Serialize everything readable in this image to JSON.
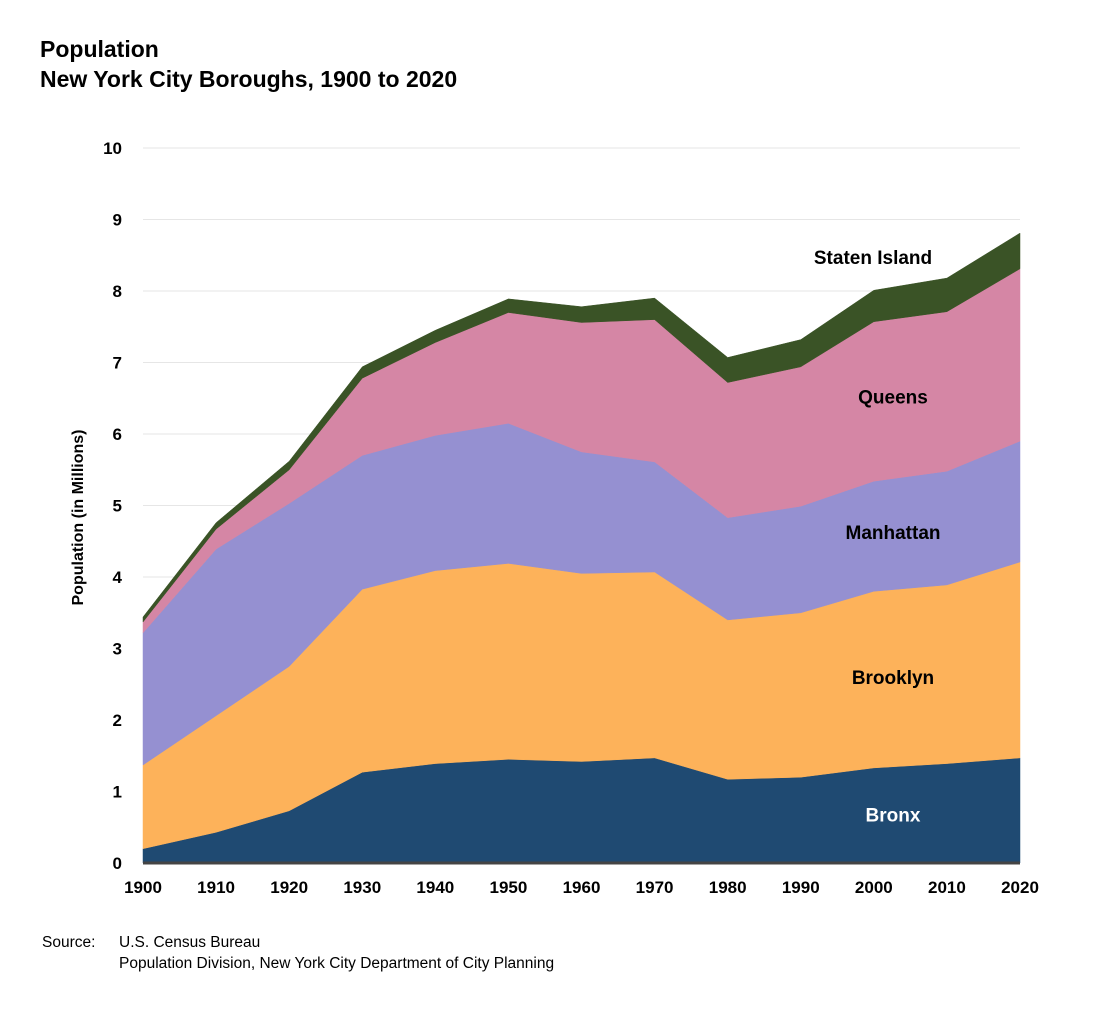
{
  "title": {
    "line1": "Population",
    "line2": "New York City Boroughs, 1900 to 2020"
  },
  "source": {
    "label": "Source:",
    "line1": "U.S. Census Bureau",
    "line2": "Population Division, New York City Department of City Planning"
  },
  "chart_data": {
    "type": "area",
    "stacked": true,
    "title": "Population New York City Boroughs, 1900 to 2020",
    "xlabel": "",
    "ylabel": "Population (in Millions)",
    "ylim": [
      0,
      10
    ],
    "yticks": [
      "0",
      "1",
      "2",
      "3",
      "4",
      "5",
      "6",
      "7",
      "8",
      "9",
      "10"
    ],
    "grid": true,
    "x": [
      "1900",
      "1910",
      "1920",
      "1930",
      "1940",
      "1950",
      "1960",
      "1970",
      "1980",
      "1990",
      "2000",
      "2010",
      "2020"
    ],
    "series": [
      {
        "name": "Bronx",
        "label": "Bronx",
        "color": "#1f4a72",
        "label_color": "#ffffff",
        "values": [
          0.2,
          0.43,
          0.73,
          1.27,
          1.39,
          1.45,
          1.42,
          1.47,
          1.17,
          1.2,
          1.33,
          1.39,
          1.47
        ]
      },
      {
        "name": "Brooklyn",
        "label": "Brooklyn",
        "color": "#fdb25a",
        "label_color": "#000000",
        "values": [
          1.17,
          1.63,
          2.02,
          2.56,
          2.7,
          2.74,
          2.63,
          2.6,
          2.23,
          2.3,
          2.47,
          2.5,
          2.74
        ]
      },
      {
        "name": "Manhattan",
        "label": "Manhattan",
        "color": "#9590d1",
        "label_color": "#000000",
        "values": [
          1.85,
          2.33,
          2.28,
          1.87,
          1.89,
          1.96,
          1.7,
          1.54,
          1.43,
          1.49,
          1.54,
          1.59,
          1.69
        ]
      },
      {
        "name": "Queens",
        "label": "Queens",
        "color": "#d586a5",
        "label_color": "#000000",
        "values": [
          0.15,
          0.28,
          0.47,
          1.08,
          1.3,
          1.55,
          1.81,
          1.99,
          1.89,
          1.95,
          2.23,
          2.23,
          2.41
        ]
      },
      {
        "name": "Staten Island",
        "label": "Staten Island",
        "color": "#3a5326",
        "label_color": "#000000",
        "values": [
          0.07,
          0.09,
          0.12,
          0.16,
          0.17,
          0.19,
          0.22,
          0.3,
          0.35,
          0.38,
          0.44,
          0.47,
          0.5
        ]
      }
    ]
  }
}
